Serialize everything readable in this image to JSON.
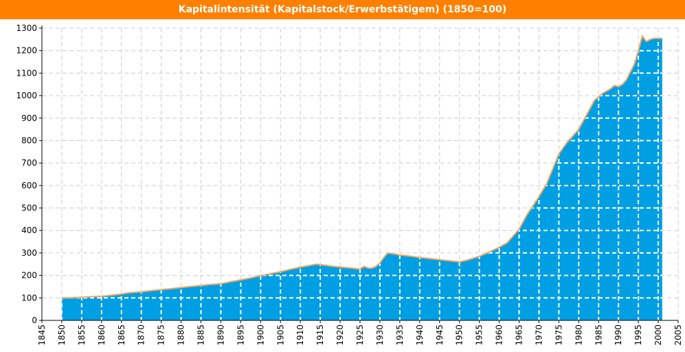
{
  "chart_data": {
    "type": "area",
    "title": "Kapitalintensität (Kapitalstock/Erwerbstätigem) (1850=100)",
    "xlabel": "",
    "ylabel": "",
    "xlim": [
      1845,
      2005
    ],
    "ylim": [
      0,
      1300
    ],
    "x_ticks": [
      1845,
      1850,
      1855,
      1860,
      1865,
      1870,
      1875,
      1880,
      1885,
      1890,
      1895,
      1900,
      1905,
      1910,
      1915,
      1920,
      1925,
      1930,
      1935,
      1940,
      1945,
      1950,
      1955,
      1960,
      1965,
      1970,
      1975,
      1980,
      1985,
      1990,
      1995,
      2000,
      2005
    ],
    "y_ticks": [
      0,
      100,
      200,
      300,
      400,
      500,
      600,
      700,
      800,
      900,
      1000,
      1100,
      1200,
      1300
    ],
    "grid": true,
    "colors": {
      "fill": "#009fe3",
      "line": "#f4a460",
      "title_bar": "#ff8000",
      "grid": "#cccccc"
    },
    "series": [
      {
        "x": [
          1850,
          1852,
          1855,
          1858,
          1860,
          1862,
          1865,
          1867,
          1870,
          1872,
          1875,
          1878,
          1880,
          1882,
          1885,
          1887,
          1890,
          1892,
          1895,
          1897,
          1900,
          1902,
          1905,
          1907,
          1910,
          1912,
          1914,
          1916,
          1918,
          1920,
          1922,
          1925,
          1926,
          1927,
          1928,
          1929,
          1930,
          1931,
          1932,
          1935,
          1938,
          1940,
          1945,
          1950,
          1952,
          1955,
          1957,
          1960,
          1962,
          1965,
          1967,
          1970,
          1972,
          1975,
          1977,
          1980,
          1982,
          1984,
          1986,
          1988,
          1989,
          1990,
          1991,
          1992,
          1994,
          1995,
          1996,
          1997,
          1998,
          1999,
          2000,
          2001
        ],
        "y": [
          100,
          100,
          103,
          106,
          108,
          111,
          117,
          123,
          127,
          131,
          137,
          142,
          146,
          150,
          155,
          159,
          163,
          170,
          180,
          187,
          199,
          206,
          216,
          225,
          237,
          243,
          250,
          246,
          241,
          237,
          234,
          228,
          240,
          233,
          232,
          240,
          255,
          280,
          300,
          291,
          285,
          280,
          270,
          260,
          268,
          285,
          300,
          325,
          345,
          405,
          470,
          550,
          610,
          740,
          790,
          850,
          915,
          980,
          1010,
          1030,
          1045,
          1040,
          1050,
          1070,
          1140,
          1200,
          1265,
          1240,
          1250,
          1255,
          1255,
          1255
        ]
      }
    ]
  }
}
